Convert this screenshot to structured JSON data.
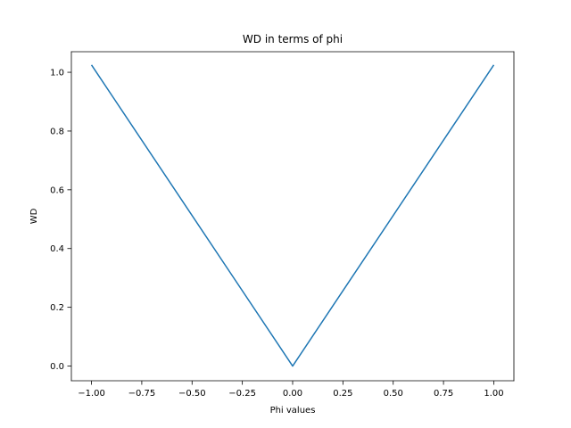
{
  "chart_data": {
    "type": "line",
    "title": "WD in terms of phi",
    "xlabel": "Phi values",
    "ylabel": "WD",
    "xlim": [
      -1.1,
      1.1
    ],
    "ylim": [
      -0.05,
      1.07
    ],
    "xticks": [
      -1.0,
      -0.75,
      -0.5,
      -0.25,
      0.0,
      0.25,
      0.5,
      0.75,
      1.0
    ],
    "xtick_labels": [
      "−1.00",
      "−0.75",
      "−0.50",
      "−0.25",
      "0.00",
      "0.25",
      "0.50",
      "0.75",
      "1.00"
    ],
    "yticks": [
      0.0,
      0.2,
      0.4,
      0.6,
      0.8,
      1.0
    ],
    "ytick_labels": [
      "0.0",
      "0.2",
      "0.4",
      "0.6",
      "0.8",
      "1.0"
    ],
    "grid": false,
    "series": [
      {
        "color": "#1f77b4",
        "x": [
          -1.0,
          0.0,
          1.0
        ],
        "y": [
          1.025,
          0.0,
          1.025
        ]
      }
    ]
  }
}
